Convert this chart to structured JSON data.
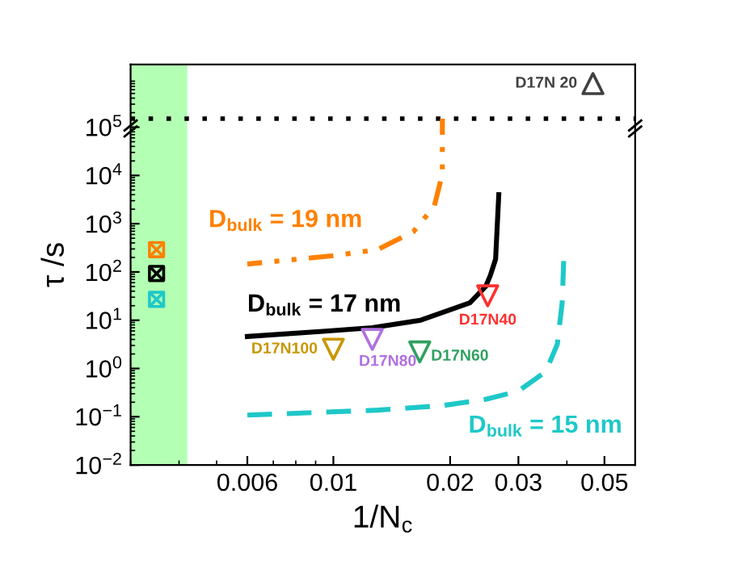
{
  "chart_data": {
    "type": "line",
    "xlabel": "1/N$_{c}$",
    "ylabel": "τ /s",
    "log": "xy",
    "xlim": [
      0.003,
      0.06
    ],
    "xticks": [
      0.006,
      0.01,
      0.02,
      0.03,
      0.05
    ],
    "ylim": [
      0.01,
      2000000
    ],
    "yticks": [
      {
        "value": 0.01,
        "label": "10$^{−2}$"
      },
      {
        "value": 0.1,
        "label": "10$^{−1}$"
      },
      {
        "value": 1,
        "label": "10$^{0}$"
      },
      {
        "value": 10,
        "label": "10$^{1}$"
      },
      {
        "value": 100,
        "label": "10$^{2}$"
      },
      {
        "value": 1000,
        "label": "10$^{3}$"
      },
      {
        "value": 10000,
        "label": "10$^{4}$"
      },
      {
        "value": 100000,
        "label": "10$^{5}$"
      }
    ],
    "grid": false,
    "legend": false,
    "bands": [
      {
        "axis": "x",
        "from": 0.003,
        "to": 0.0042,
        "color": "#b3ffb3"
      }
    ],
    "ref_lines": [
      {
        "axis": "y",
        "value": 150000,
        "color": "#000000",
        "line_style": "dotted"
      }
    ],
    "series": [
      {
        "name": "D$_{bulk}$ = 19 nm",
        "color": "#ff8000",
        "line_style": "dashdotdot",
        "x": [
          0.006,
          0.0099,
          0.013,
          0.0161,
          0.0182,
          0.0191,
          0.0191,
          0.0191
        ],
        "values": [
          146,
          215,
          290,
          690,
          2300,
          10700,
          126000,
          150000
        ]
      },
      {
        "name": "D$_{bulk}$ = 17 nm",
        "color": "#000000",
        "line_style": "solid",
        "x": [
          0.006,
          0.0094,
          0.0126,
          0.0168,
          0.0225,
          0.0247,
          0.0254,
          0.0262,
          0.0267
        ],
        "values": [
          4.6,
          5.9,
          7,
          10,
          23,
          50,
          85,
          185,
          4000
        ]
      },
      {
        "name": "D$_{bulk}$ = 15 nm",
        "color": "#1ec8c8",
        "line_style": "dashed",
        "x": [
          0.006,
          0.013,
          0.0191,
          0.0247,
          0.03,
          0.0353,
          0.0378,
          0.0389,
          0.0393
        ],
        "values": [
          0.108,
          0.137,
          0.17,
          0.23,
          0.34,
          0.86,
          3.2,
          23,
          215
        ]
      },
      {
        "type": "scatter",
        "marker": "square",
        "color": "#ff8000",
        "x": [
          0.0035
        ],
        "values": [
          290
        ]
      },
      {
        "type": "scatter",
        "marker": "square",
        "color": "#000000",
        "x": [
          0.0035
        ],
        "values": [
          93
        ]
      },
      {
        "type": "scatter",
        "marker": "square",
        "color": "#1ec8c8",
        "x": [
          0.0035
        ],
        "values": [
          27
        ]
      },
      {
        "name": "D17N40",
        "type": "scatter",
        "marker": "triangle_down",
        "color": "#ff3030",
        "x": [
          0.025
        ],
        "values": [
          32
        ]
      },
      {
        "name": "D17N100",
        "type": "scatter",
        "marker": "triangle_down",
        "color": "#c89600",
        "x": [
          0.01
        ],
        "values": [
          2.5
        ]
      },
      {
        "name": "D17N80",
        "type": "scatter",
        "marker": "triangle_down",
        "color": "#b070e0",
        "x": [
          0.0126
        ],
        "values": [
          4
        ]
      },
      {
        "name": "D17N60",
        "type": "scatter",
        "marker": "triangle_down",
        "color": "#30a060",
        "x": [
          0.0167
        ],
        "values": [
          2.2
        ]
      },
      {
        "name": "D17N 20",
        "type": "scatter",
        "marker": "triangle",
        "color": "#404040",
        "x": [
          0.0467
        ],
        "values": [
          800000
        ]
      }
    ]
  }
}
